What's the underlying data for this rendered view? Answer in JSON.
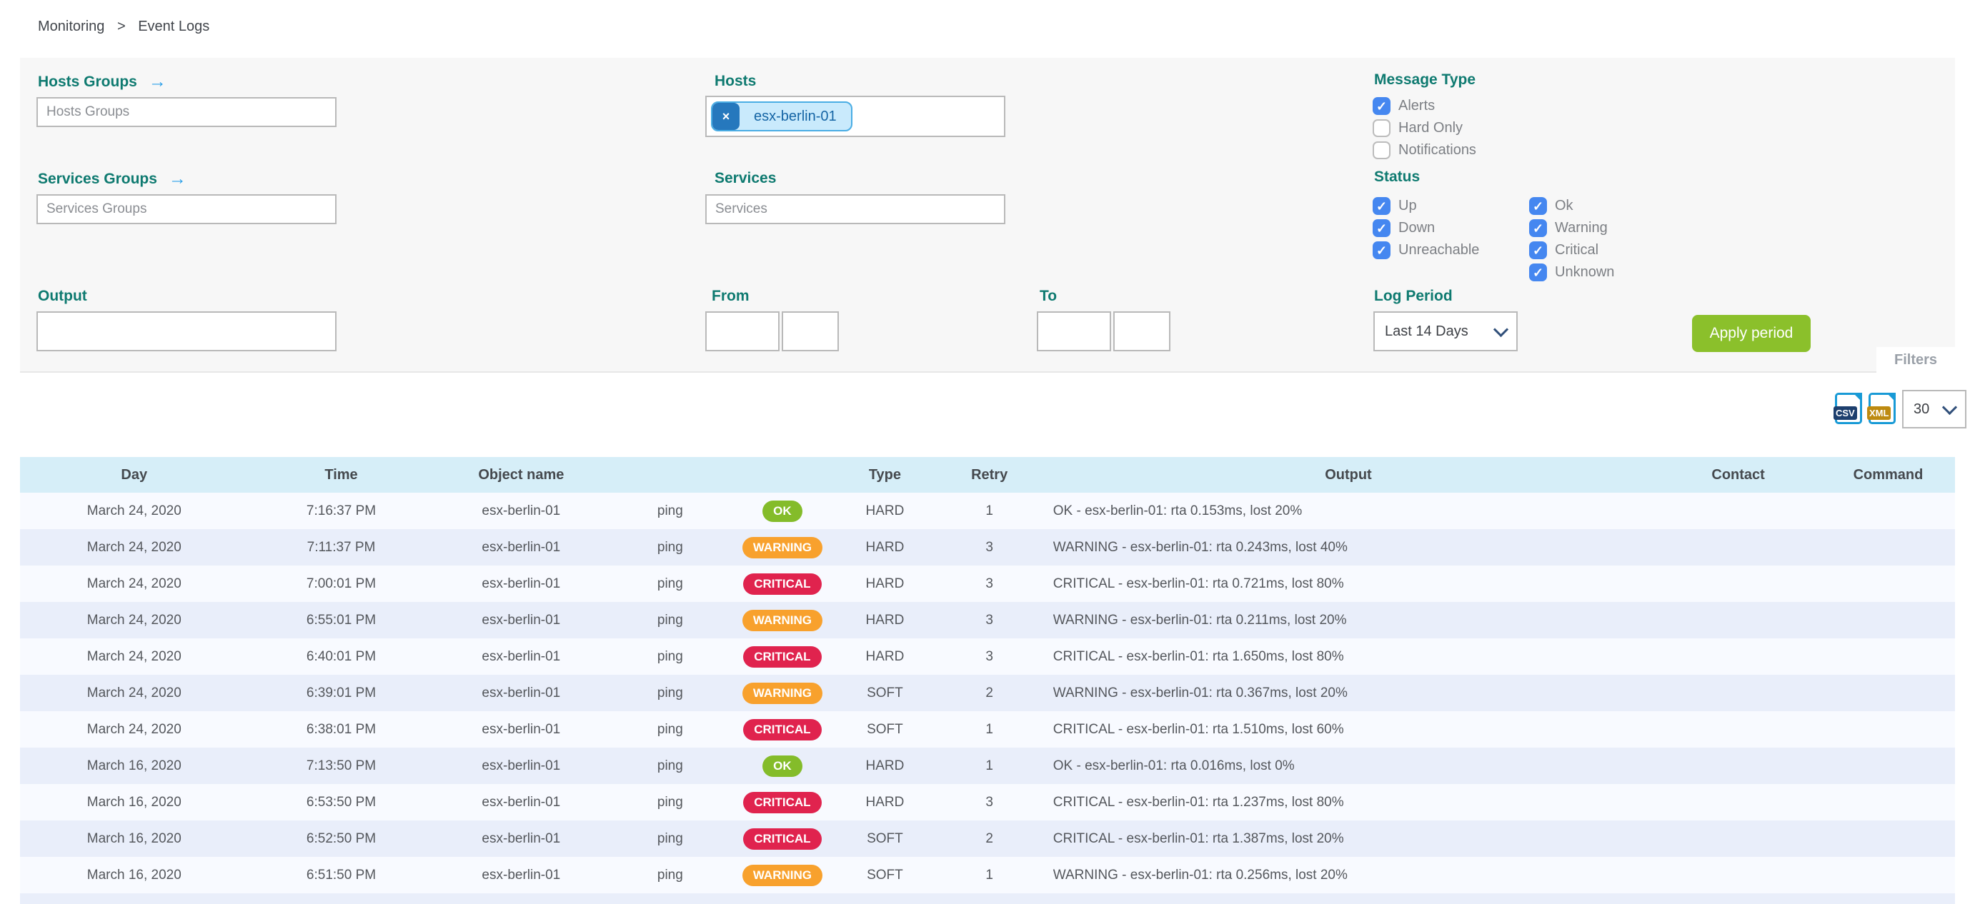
{
  "breadcrumb": {
    "items": [
      "Monitoring",
      "Event Logs"
    ],
    "separator": ">"
  },
  "filters": {
    "hosts_groups": {
      "label": "Hosts Groups",
      "arrow_icon": "→",
      "placeholder": "Hosts Groups"
    },
    "services_groups": {
      "label": "Services Groups",
      "arrow_icon": "→",
      "placeholder": "Services Groups"
    },
    "hosts": {
      "label": "Hosts",
      "tag": {
        "label": "esx-berlin-01",
        "remove_icon": "×"
      }
    },
    "services": {
      "label": "Services",
      "placeholder": "Services"
    },
    "output": {
      "label": "Output",
      "value": ""
    },
    "from": {
      "label": "From",
      "date_value": "",
      "time_value": ""
    },
    "to": {
      "label": "To",
      "date_value": "",
      "time_value": ""
    },
    "message_type": {
      "label": "Message Type",
      "options": [
        {
          "label": "Alerts",
          "checked": true
        },
        {
          "label": "Hard Only",
          "checked": false
        },
        {
          "label": "Notifications",
          "checked": false
        }
      ]
    },
    "status": {
      "label": "Status",
      "column1": [
        {
          "label": "Up",
          "checked": true
        },
        {
          "label": "Down",
          "checked": true
        },
        {
          "label": "Unreachable",
          "checked": true
        }
      ],
      "column2": [
        {
          "label": "Ok",
          "checked": true
        },
        {
          "label": "Warning",
          "checked": true
        },
        {
          "label": "Critical",
          "checked": true
        },
        {
          "label": "Unknown",
          "checked": true
        }
      ]
    },
    "log_period": {
      "label": "Log Period",
      "selected": "Last 14 Days"
    },
    "apply_button_label": "Apply period",
    "panel_tab_label": "Filters"
  },
  "toolbar": {
    "csv_label": "CSV",
    "xml_label": "XML",
    "page_size": "30"
  },
  "table": {
    "columns": [
      "Day",
      "Time",
      "Object name",
      "",
      "",
      "Type",
      "Retry",
      "Output",
      "Contact",
      "Command"
    ],
    "rows": [
      {
        "day": "March 24, 2020",
        "time": "7:16:37 PM",
        "object": "esx-berlin-01",
        "service": "ping",
        "status": "OK",
        "type": "HARD",
        "retry": "1",
        "output": "OK - esx-berlin-01: rta 0.153ms, lost 20%",
        "contact": "",
        "command": ""
      },
      {
        "day": "March 24, 2020",
        "time": "7:11:37 PM",
        "object": "esx-berlin-01",
        "service": "ping",
        "status": "WARNING",
        "type": "HARD",
        "retry": "3",
        "output": "WARNING - esx-berlin-01: rta 0.243ms, lost 40%",
        "contact": "",
        "command": ""
      },
      {
        "day": "March 24, 2020",
        "time": "7:00:01 PM",
        "object": "esx-berlin-01",
        "service": "ping",
        "status": "CRITICAL",
        "type": "HARD",
        "retry": "3",
        "output": "CRITICAL - esx-berlin-01: rta 0.721ms, lost 80%",
        "contact": "",
        "command": ""
      },
      {
        "day": "March 24, 2020",
        "time": "6:55:01 PM",
        "object": "esx-berlin-01",
        "service": "ping",
        "status": "WARNING",
        "type": "HARD",
        "retry": "3",
        "output": "WARNING - esx-berlin-01: rta 0.211ms, lost 20%",
        "contact": "",
        "command": ""
      },
      {
        "day": "March 24, 2020",
        "time": "6:40:01 PM",
        "object": "esx-berlin-01",
        "service": "ping",
        "status": "CRITICAL",
        "type": "HARD",
        "retry": "3",
        "output": "CRITICAL - esx-berlin-01: rta 1.650ms, lost 80%",
        "contact": "",
        "command": ""
      },
      {
        "day": "March 24, 2020",
        "time": "6:39:01 PM",
        "object": "esx-berlin-01",
        "service": "ping",
        "status": "WARNING",
        "type": "SOFT",
        "retry": "2",
        "output": "WARNING - esx-berlin-01: rta 0.367ms, lost 20%",
        "contact": "",
        "command": ""
      },
      {
        "day": "March 24, 2020",
        "time": "6:38:01 PM",
        "object": "esx-berlin-01",
        "service": "ping",
        "status": "CRITICAL",
        "type": "SOFT",
        "retry": "1",
        "output": "CRITICAL - esx-berlin-01: rta 1.510ms, lost 60%",
        "contact": "",
        "command": ""
      },
      {
        "day": "March 16, 2020",
        "time": "7:13:50 PM",
        "object": "esx-berlin-01",
        "service": "ping",
        "status": "OK",
        "type": "HARD",
        "retry": "1",
        "output": "OK - esx-berlin-01: rta 0.016ms, lost 0%",
        "contact": "",
        "command": ""
      },
      {
        "day": "March 16, 2020",
        "time": "6:53:50 PM",
        "object": "esx-berlin-01",
        "service": "ping",
        "status": "CRITICAL",
        "type": "HARD",
        "retry": "3",
        "output": "CRITICAL - esx-berlin-01: rta 1.237ms, lost 80%",
        "contact": "",
        "command": ""
      },
      {
        "day": "March 16, 2020",
        "time": "6:52:50 PM",
        "object": "esx-berlin-01",
        "service": "ping",
        "status": "CRITICAL",
        "type": "SOFT",
        "retry": "2",
        "output": "CRITICAL - esx-berlin-01: rta 1.387ms, lost 20%",
        "contact": "",
        "command": ""
      },
      {
        "day": "March 16, 2020",
        "time": "6:51:50 PM",
        "object": "esx-berlin-01",
        "service": "ping",
        "status": "WARNING",
        "type": "SOFT",
        "retry": "1",
        "output": "WARNING - esx-berlin-01: rta 0.256ms, lost 20%",
        "contact": "",
        "command": ""
      }
    ]
  },
  "colors": {
    "accent_teal": "#0e7a70",
    "checkbox_blue": "#4587f0",
    "apply_green": "#8bc02b",
    "ok_green": "#84bc2a",
    "warning_orange": "#f8a12d",
    "critical_red": "#e0234e",
    "table_header_blue": "#d6eef8",
    "row_alt_blue": "#e9eefa"
  }
}
